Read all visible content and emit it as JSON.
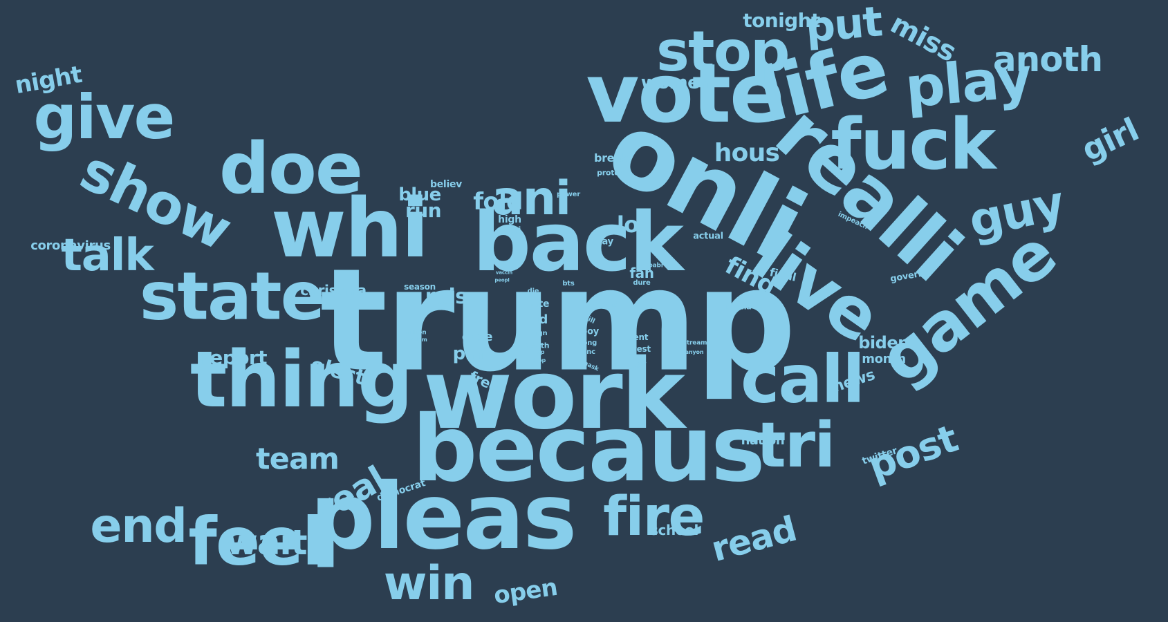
{
  "colors": {
    "background": "#2c3e50",
    "word": "#87ceeb"
  },
  "words": [
    {
      "text": "trump",
      "weight": 100
    },
    {
      "text": "work",
      "weight": 62
    },
    {
      "text": "becaus",
      "weight": 62
    },
    {
      "text": "pleas",
      "weight": 62
    },
    {
      "text": "back",
      "weight": 60
    },
    {
      "text": "onli",
      "weight": 58
    },
    {
      "text": "vote",
      "weight": 55
    },
    {
      "text": "whi",
      "weight": 55
    },
    {
      "text": "thing",
      "weight": 54
    },
    {
      "text": "realli",
      "weight": 50
    },
    {
      "text": "live",
      "weight": 46
    },
    {
      "text": "life",
      "weight": 45
    },
    {
      "text": "fuck",
      "weight": 44
    },
    {
      "text": "doe",
      "weight": 43
    },
    {
      "text": "state",
      "weight": 42
    },
    {
      "text": "call",
      "weight": 41
    },
    {
      "text": "feel",
      "weight": 40
    },
    {
      "text": "game",
      "weight": 39
    },
    {
      "text": "show",
      "weight": 38
    },
    {
      "text": "stop",
      "weight": 37
    },
    {
      "text": "play",
      "weight": 36
    },
    {
      "text": "give",
      "weight": 36
    },
    {
      "text": "tri",
      "weight": 35
    },
    {
      "text": "fire",
      "weight": 33
    },
    {
      "text": "end",
      "weight": 32
    },
    {
      "text": "win",
      "weight": 31
    },
    {
      "text": "ani",
      "weight": 30
    },
    {
      "text": "guy",
      "weight": 29
    },
    {
      "text": "talk",
      "weight": 28
    },
    {
      "text": "put",
      "weight": 28
    },
    {
      "text": "post",
      "weight": 25
    },
    {
      "text": "wait",
      "weight": 24
    },
    {
      "text": "anoth",
      "weight": 24
    },
    {
      "text": "read",
      "weight": 22
    },
    {
      "text": "real",
      "weight": 22
    },
    {
      "text": "find",
      "weight": 20
    },
    {
      "text": "girl",
      "weight": 20
    },
    {
      "text": "miss",
      "weight": 20
    },
    {
      "text": "team",
      "weight": 20
    },
    {
      "text": "fold",
      "weight": 17
    },
    {
      "text": "hous",
      "weight": 17
    },
    {
      "text": "lot",
      "weight": 17
    },
    {
      "text": "night",
      "weight": 16
    },
    {
      "text": "open",
      "weight": 16
    },
    {
      "text": "run",
      "weight": 15
    },
    {
      "text": "blue",
      "weight": 14
    },
    {
      "text": "tonight",
      "weight": 14
    },
    {
      "text": "rais",
      "weight": 14
    },
    {
      "text": "elect",
      "weight": 14
    },
    {
      "text": "pm",
      "weight": 14
    },
    {
      "text": "women",
      "weight": 13
    },
    {
      "text": "report",
      "weight": 12
    },
    {
      "text": "biden",
      "weight": 12
    },
    {
      "text": "news",
      "weight": 11
    },
    {
      "text": "free",
      "weight": 10
    },
    {
      "text": "christma",
      "weight": 10
    },
    {
      "text": "coronavirus",
      "weight": 10
    },
    {
      "text": "school",
      "weight": 10
    },
    {
      "text": "fan",
      "weight": 10
    },
    {
      "text": "case",
      "weight": 10
    },
    {
      "text": "month",
      "weight": 9
    },
    {
      "text": "nation",
      "weight": 9
    },
    {
      "text": "final",
      "weight": 9
    },
    {
      "text": "kid",
      "weight": 9
    },
    {
      "text": "break",
      "weight": 8
    },
    {
      "text": "hate",
      "weight": 8
    },
    {
      "text": "democrat",
      "weight": 8
    },
    {
      "text": "twitter",
      "weight": 8
    },
    {
      "text": "high",
      "weight": 8
    },
    {
      "text": "stori",
      "weight": 8
    },
    {
      "text": "actual",
      "weight": 8
    },
    {
      "text": "govern",
      "weight": 8
    },
    {
      "text": "stay",
      "weight": 7
    },
    {
      "text": "left",
      "weight": 7
    },
    {
      "text": "boy",
      "weight": 7
    },
    {
      "text": "bad",
      "weight": 7
    },
    {
      "text": "believ",
      "weight": 7
    },
    {
      "text": "season",
      "weight": 7
    },
    {
      "text": "test",
      "weight": 7
    },
    {
      "text": "cent",
      "weight": 7
    },
    {
      "text": "impeach",
      "weight": 6
    },
    {
      "text": "protest",
      "weight": 6
    },
    {
      "text": "power",
      "weight": 6
    },
    {
      "text": "mama",
      "weight": 6
    },
    {
      "text": "million",
      "weight": 5
    },
    {
      "text": "pandem",
      "weight": 5
    },
    {
      "text": "death",
      "weight": 5
    },
    {
      "text": "song",
      "weight": 5
    },
    {
      "text": "sinc",
      "weight": 5
    },
    {
      "text": "sign",
      "weight": 5
    },
    {
      "text": "babi",
      "weight": 5
    },
    {
      "text": "dure",
      "weight": 5
    },
    {
      "text": "stream",
      "weight": 5
    },
    {
      "text": "kill",
      "weight": 5
    },
    {
      "text": "die",
      "weight": 4
    },
    {
      "text": "top",
      "weight": 4
    },
    {
      "text": "drop",
      "weight": 4
    },
    {
      "text": "health",
      "weight": 4
    },
    {
      "text": "mask",
      "weight": 4
    },
    {
      "text": "lie",
      "weight": 4
    },
    {
      "text": "bts",
      "weight": 4
    },
    {
      "text": "anyon",
      "weight": 4
    },
    {
      "text": "peopl",
      "weight": 3
    },
    {
      "text": "vaccin",
      "weight": 3
    }
  ]
}
